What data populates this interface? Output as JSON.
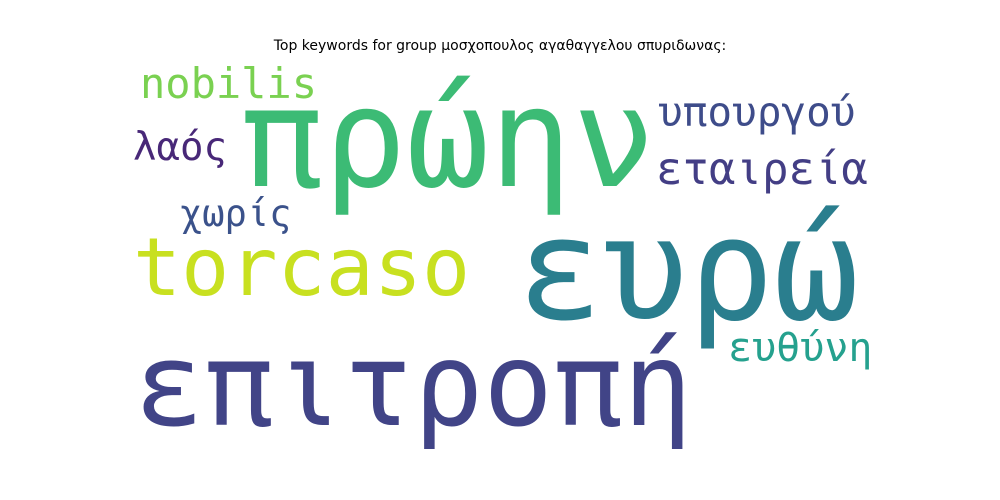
{
  "title": "Top keywords for group μοσχοπουλος αγαθαγγελου σπυριδωνας:",
  "words": [
    {
      "text": "nobilis",
      "color": "#7ad151"
    },
    {
      "text": "πρώην",
      "color": "#3cbb75"
    },
    {
      "text": "υπουργού",
      "color": "#3e4c8a"
    },
    {
      "text": "λαός",
      "color": "#482878"
    },
    {
      "text": "εταιρεία",
      "color": "#433e85"
    },
    {
      "text": "χωρίς",
      "color": "#3b528b"
    },
    {
      "text": "torcaso",
      "color": "#c8e020"
    },
    {
      "text": "ευρώ",
      "color": "#2a7e8e"
    },
    {
      "text": "ευθύνη",
      "color": "#25a18e"
    },
    {
      "text": "επιτροπή",
      "color": "#414487"
    }
  ]
}
